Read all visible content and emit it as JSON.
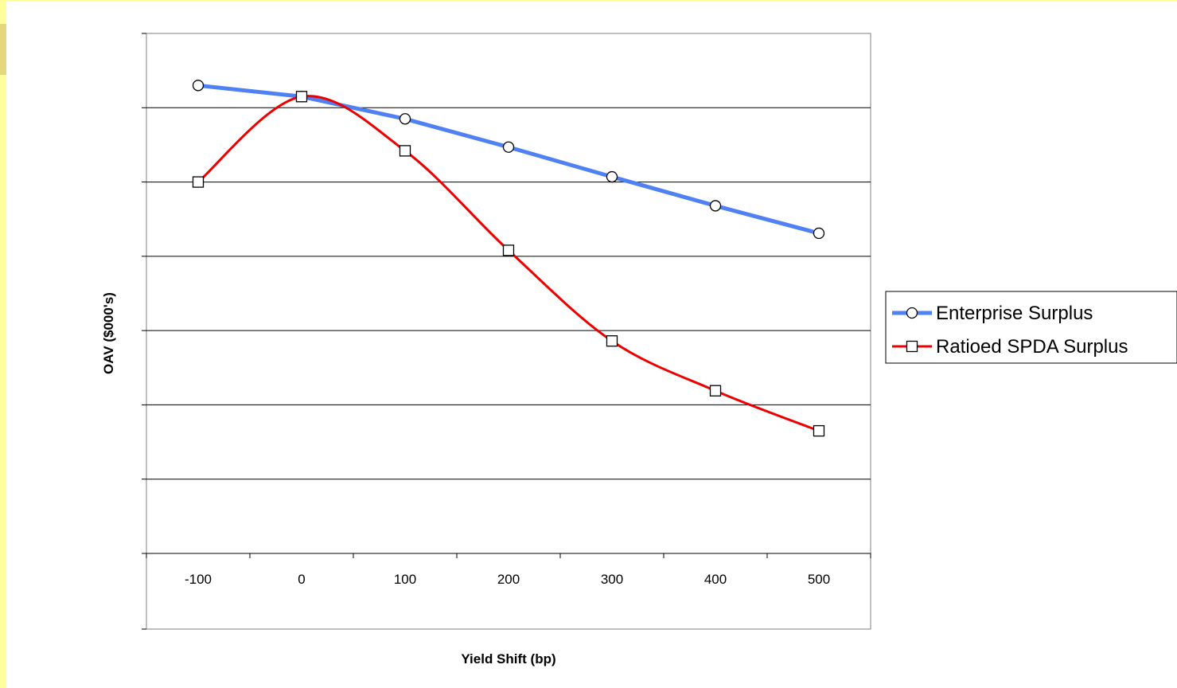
{
  "chart_data": {
    "type": "line",
    "title": "",
    "xlabel": "Yield Shift (bp)",
    "ylabel": "OAV ($000's)",
    "categories": [
      "-100",
      "0",
      "100",
      "200",
      "300",
      "400",
      "500"
    ],
    "ylim": [
      0,
      7
    ],
    "grid": "horizontal",
    "legend_position": "right",
    "series": [
      {
        "name": "Enterprise Surplus",
        "color": "#4f81f5",
        "marker": "circle",
        "smooth": false,
        "values": [
          6.3,
          6.15,
          5.85,
          5.47,
          5.07,
          4.68,
          4.31
        ]
      },
      {
        "name": "Ratioed SPDA Surplus",
        "color": "#ee0000",
        "marker": "square",
        "smooth": true,
        "values": [
          5.0,
          6.15,
          5.42,
          4.08,
          2.86,
          2.19,
          1.65
        ]
      }
    ]
  }
}
